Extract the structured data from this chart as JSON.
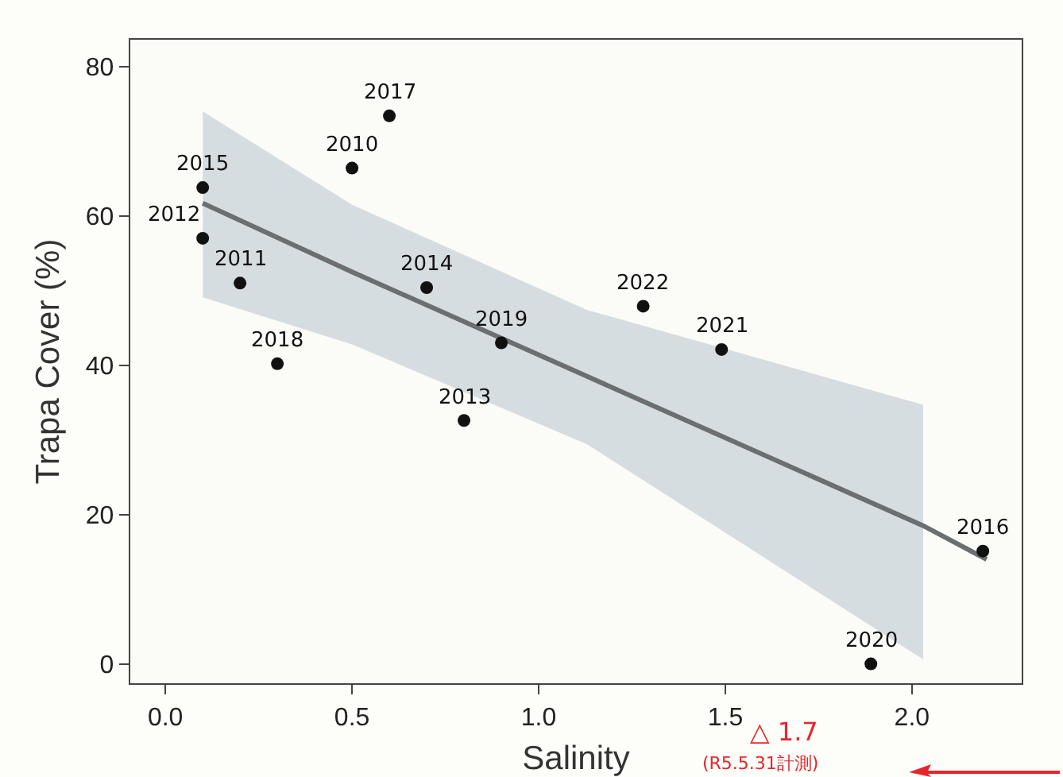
{
  "chart_data": {
    "type": "scatter",
    "xlabel": "Salinity",
    "ylabel": "Trapa Cover (%)",
    "xlim": [
      -0.094,
      2.294
    ],
    "xticks": [
      {
        "value": 0,
        "label": "0.0"
      },
      {
        "value": 0.5,
        "label": "0.5"
      },
      {
        "value": 1,
        "label": "1.0"
      },
      {
        "value": 1.5,
        "label": "1.5"
      },
      {
        "value": 2,
        "label": "2.0"
      }
    ],
    "ylim": [
      -2.6,
      83.6
    ],
    "yticks": [
      0,
      20,
      40,
      60,
      80
    ],
    "marker": "circle",
    "series": [
      {
        "type": "line",
        "marker": "none",
        "color": "#6b6f72",
        "x": [
          0.1,
          0.5,
          1.13,
          2.03,
          2.2
        ],
        "values": [
          61.7,
          52.5,
          38.5,
          18.5,
          14.0
        ],
        "lower": [
          49.1,
          42.8,
          29.4,
          0.6,
          null
        ],
        "upper": [
          74.0,
          61.5,
          47.4,
          34.7,
          null
        ]
      },
      {
        "color": "#111111",
        "x": [
          0.1,
          0.1,
          0.2,
          0.3,
          0.5,
          0.6,
          0.7,
          0.8,
          0.9,
          1.28,
          1.49,
          2.19,
          1.89
        ],
        "values": [
          63.8,
          57.0,
          51.0,
          40.2,
          66.4,
          73.4,
          50.4,
          32.6,
          43.0,
          47.9,
          42.1,
          15.1,
          0.0
        ]
      }
    ],
    "annotations": [
      "△ 1.7",
      "(R5.5.31計測)",
      {
        "text": "2015",
        "x": 0.1,
        "y": 63.8
      },
      {
        "text": "2012",
        "x": 0.1,
        "y": 57.0
      },
      {
        "text": "2011",
        "x": 0.2,
        "y": 51.0
      },
      {
        "text": "2018",
        "x": 0.3,
        "y": 40.2
      },
      {
        "text": "2010",
        "x": 0.5,
        "y": 66.4
      },
      {
        "text": "2017",
        "x": 0.6,
        "y": 73.4
      },
      {
        "text": "2014",
        "x": 0.7,
        "y": 50.4
      },
      {
        "text": "2013",
        "x": 0.8,
        "y": 32.6
      },
      {
        "text": "2019",
        "x": 0.9,
        "y": 43.0
      },
      {
        "text": "2022",
        "x": 1.28,
        "y": 47.9
      },
      {
        "text": "2021",
        "x": 1.49,
        "y": 42.1
      },
      {
        "text": "2016",
        "x": 2.19,
        "y": 15.1
      },
      {
        "text": "2020",
        "x": 1.89,
        "y": 0.0
      }
    ]
  }
}
